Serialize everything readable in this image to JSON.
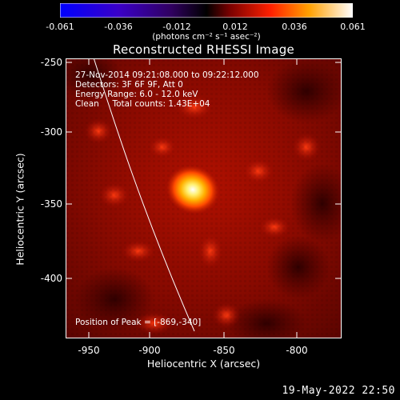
{
  "colorbar": {
    "ticks": [
      "-0.061",
      "-0.036",
      "-0.012",
      "0.012",
      "0.036",
      "0.061"
    ],
    "units": "(photons cm⁻² s⁻¹ asec⁻²)"
  },
  "title": "Reconstructed RHESSI Image",
  "info": {
    "line1": "27-Nov-2014 09:21:08.000 to 09:22:12.000",
    "line2": "Detectors: 3F 6F 9F, Att 0",
    "line3": "Energy Range: 6.0 - 12.0 keV",
    "line4": "Clean     Total counts: 1.43E+04"
  },
  "peak_text": "Position of Peak = [-869,-340]",
  "axes": {
    "ylabel": "Heliocentric Y (arcsec)",
    "xlabel": "Heliocentric X (arcsec)",
    "yticks": [
      "-250",
      "-300",
      "-350",
      "-400"
    ],
    "xticks": [
      "-950",
      "-900",
      "-850",
      "-800"
    ]
  },
  "timestamp": "19-May-2022 22:50"
}
